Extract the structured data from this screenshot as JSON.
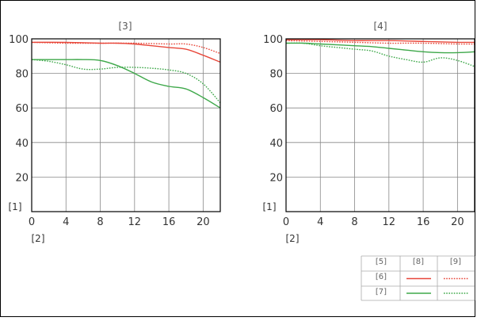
{
  "chart_data": [
    {
      "type": "line",
      "title": "[3]",
      "ylabel": "[1]",
      "xlabel": "[2]",
      "xlim": [
        0,
        22
      ],
      "ylim": [
        0,
        100
      ],
      "x_ticks": [
        0,
        4,
        8,
        12,
        16,
        20
      ],
      "y_ticks": [
        20,
        40,
        60,
        80,
        100
      ],
      "grid": true,
      "series": [
        {
          "row": 0,
          "col": 0,
          "color": "#e8473a",
          "style": "solid",
          "x": [
            0,
            4,
            8,
            10,
            12,
            14,
            16,
            18,
            20,
            22
          ],
          "y": [
            98,
            98,
            97.5,
            97.5,
            97,
            96,
            95,
            94,
            90.5,
            86.5
          ]
        },
        {
          "row": 0,
          "col": 1,
          "color": "#e8473a",
          "style": "dotted",
          "x": [
            0,
            4,
            8,
            12,
            16,
            18,
            20,
            22
          ],
          "y": [
            98,
            97.5,
            97.5,
            97.5,
            97,
            97,
            95,
            91.5
          ]
        },
        {
          "row": 1,
          "col": 0,
          "color": "#3ea84a",
          "style": "solid",
          "x": [
            0,
            2,
            4,
            6,
            8,
            10,
            12,
            14,
            16,
            18,
            20,
            22
          ],
          "y": [
            88,
            88,
            88,
            88,
            87.5,
            84.5,
            80,
            75,
            72.5,
            71,
            66,
            60
          ]
        },
        {
          "row": 1,
          "col": 1,
          "color": "#3ea84a",
          "style": "dotted",
          "x": [
            0,
            2,
            4,
            6,
            8,
            10,
            12,
            14,
            16,
            18,
            20,
            22
          ],
          "y": [
            88,
            87,
            85,
            82.5,
            82.5,
            83.5,
            83.5,
            83,
            82,
            80,
            74,
            63
          ]
        }
      ]
    },
    {
      "type": "line",
      "title": "[4]",
      "ylabel": "[1]",
      "xlabel": "[2]",
      "xlim": [
        0,
        22
      ],
      "ylim": [
        0,
        100
      ],
      "x_ticks": [
        0,
        4,
        8,
        12,
        16,
        20
      ],
      "y_ticks": [
        20,
        40,
        60,
        80,
        100
      ],
      "grid": true,
      "series": [
        {
          "row": 0,
          "col": 0,
          "color": "#e8473a",
          "style": "solid",
          "x": [
            0,
            4,
            8,
            12,
            16,
            20,
            22
          ],
          "y": [
            99.5,
            99.5,
            99,
            99,
            98.5,
            98,
            98
          ]
        },
        {
          "row": 0,
          "col": 1,
          "color": "#e8473a",
          "style": "dotted",
          "x": [
            0,
            4,
            8,
            12,
            16,
            20,
            22
          ],
          "y": [
            99,
            98.5,
            98,
            97.5,
            97.5,
            97,
            97
          ]
        },
        {
          "row": 1,
          "col": 0,
          "color": "#3ea84a",
          "style": "solid",
          "x": [
            0,
            2,
            4,
            6,
            8,
            10,
            12,
            14,
            16,
            18,
            20,
            22
          ],
          "y": [
            97.5,
            97.5,
            97,
            96.5,
            96,
            95.5,
            94.5,
            93.5,
            92.5,
            92,
            92,
            92.5
          ]
        },
        {
          "row": 1,
          "col": 1,
          "color": "#3ea84a",
          "style": "dotted",
          "x": [
            0,
            2,
            4,
            6,
            8,
            10,
            12,
            14,
            16,
            18,
            20,
            22
          ],
          "y": [
            97.5,
            97.5,
            96,
            95,
            94,
            93,
            90,
            88,
            86.5,
            89,
            87.5,
            84
          ]
        }
      ]
    }
  ],
  "legend": {
    "header": [
      "[5]",
      "[8]",
      "[9]"
    ],
    "rows": [
      {
        "label": "[6]",
        "color": "#e8473a"
      },
      {
        "label": "[7]",
        "color": "#3ea84a"
      }
    ]
  }
}
